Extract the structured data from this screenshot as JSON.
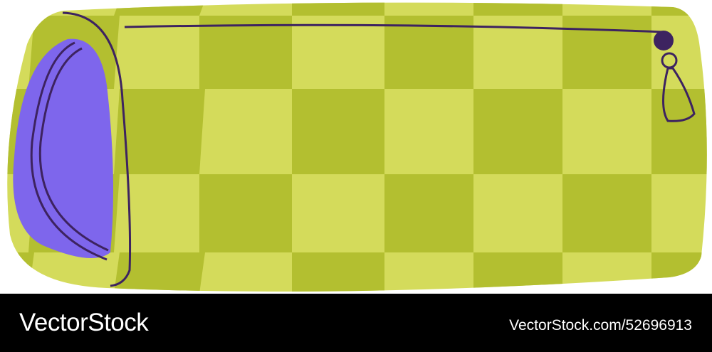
{
  "illustration": {
    "subject": "checkered pencil case",
    "colors": {
      "check_light": "#d4db5b",
      "check_dark": "#b3bf30",
      "lining": "#7e66ec",
      "outline": "#3d2360"
    }
  },
  "watermark": {
    "brand": "VectorStock",
    "id_text": "VectorStock.com/52696913"
  }
}
